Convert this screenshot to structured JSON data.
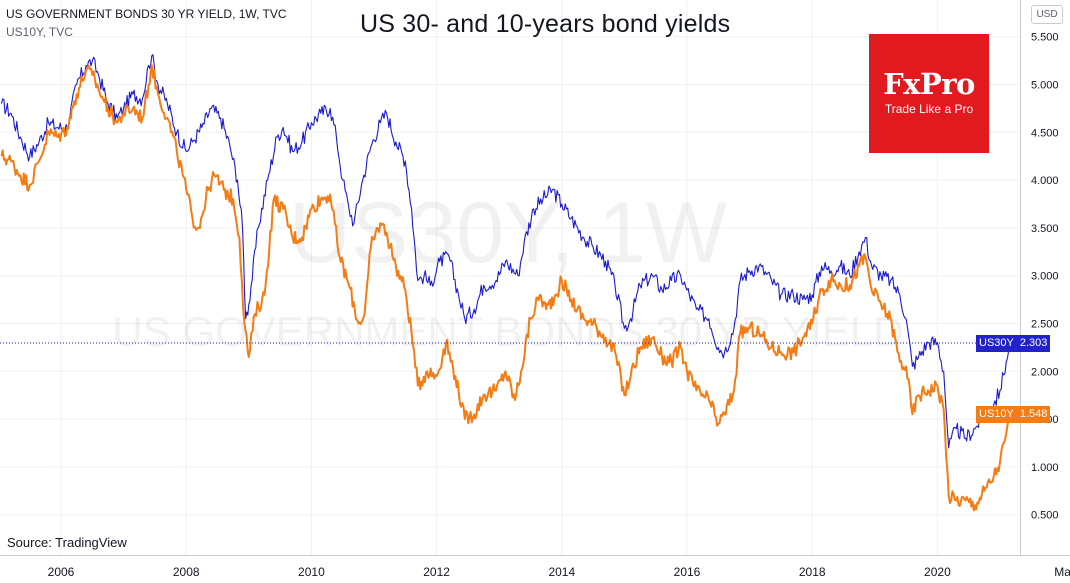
{
  "header": {
    "main": "US GOVERNMENT BONDS 30 YR YIELD, 1W, TVC",
    "secondary": "US10Y, TVC"
  },
  "title": "US 30- and 10-years bond yields",
  "watermark": {
    "symbol": "US30Y, 1W",
    "name": "US GOVERNMENT BONDS 30 YR YIELD"
  },
  "logo": {
    "name": "FxPro",
    "tagline": "Trade Like a Pro"
  },
  "source": "Source: TradingView",
  "currency": "USD",
  "last_values": [
    {
      "symbol": "US30Y",
      "value": "2.303",
      "color": "#2222cc"
    },
    {
      "symbol": "US10Y",
      "value": "1.548",
      "color": "#f57c14"
    }
  ],
  "colors": {
    "us30y": "#1a1acd",
    "us10y": "#f57c14",
    "grid": "#eef0f3",
    "axis_text": "#131722"
  },
  "chart_data": {
    "type": "line",
    "xlabel": "",
    "ylabel": "",
    "x_ticks": [
      "2006",
      "2008",
      "2010",
      "2012",
      "2014",
      "2016",
      "2018",
      "2020",
      "Ma"
    ],
    "y_ticks": [
      "5.500",
      "5.000",
      "4.500",
      "4.000",
      "3.500",
      "3.000",
      "2.500",
      "2.000",
      "1.500",
      "1.000",
      "0.500"
    ],
    "ylim": [
      0.0,
      5.65
    ],
    "xlim": [
      2005.03,
      2021.25
    ],
    "grid": true,
    "series": [
      {
        "name": "US30Y",
        "color": "#1a1acd",
        "points": [
          [
            2005.05,
            4.8
          ],
          [
            2005.2,
            4.7
          ],
          [
            2005.35,
            4.45
          ],
          [
            2005.5,
            4.25
          ],
          [
            2005.65,
            4.4
          ],
          [
            2005.8,
            4.6
          ],
          [
            2005.95,
            4.55
          ],
          [
            2006.1,
            4.55
          ],
          [
            2006.25,
            5.0
          ],
          [
            2006.4,
            5.2
          ],
          [
            2006.5,
            5.25
          ],
          [
            2006.6,
            5.1
          ],
          [
            2006.75,
            4.8
          ],
          [
            2006.9,
            4.65
          ],
          [
            2007.0,
            4.75
          ],
          [
            2007.15,
            4.9
          ],
          [
            2007.3,
            4.85
          ],
          [
            2007.4,
            5.2
          ],
          [
            2007.45,
            5.3
          ],
          [
            2007.55,
            5.0
          ],
          [
            2007.7,
            4.8
          ],
          [
            2007.85,
            4.5
          ],
          [
            2008.0,
            4.3
          ],
          [
            2008.1,
            4.4
          ],
          [
            2008.25,
            4.55
          ],
          [
            2008.4,
            4.75
          ],
          [
            2008.55,
            4.65
          ],
          [
            2008.7,
            4.35
          ],
          [
            2008.82,
            4.0
          ],
          [
            2008.9,
            3.5
          ],
          [
            2008.95,
            2.55
          ],
          [
            2009.0,
            2.7
          ],
          [
            2009.15,
            3.5
          ],
          [
            2009.3,
            4.0
          ],
          [
            2009.45,
            4.45
          ],
          [
            2009.55,
            4.55
          ],
          [
            2009.7,
            4.3
          ],
          [
            2009.85,
            4.4
          ],
          [
            2010.0,
            4.6
          ],
          [
            2010.15,
            4.7
          ],
          [
            2010.3,
            4.75
          ],
          [
            2010.4,
            4.45
          ],
          [
            2010.5,
            4.0
          ],
          [
            2010.6,
            3.7
          ],
          [
            2010.68,
            3.55
          ],
          [
            2010.8,
            3.95
          ],
          [
            2010.95,
            4.35
          ],
          [
            2011.1,
            4.6
          ],
          [
            2011.2,
            4.7
          ],
          [
            2011.35,
            4.4
          ],
          [
            2011.5,
            4.2
          ],
          [
            2011.6,
            3.7
          ],
          [
            2011.7,
            2.95
          ],
          [
            2011.8,
            3.0
          ],
          [
            2011.9,
            2.9
          ],
          [
            2012.05,
            3.15
          ],
          [
            2012.2,
            3.2
          ],
          [
            2012.35,
            2.8
          ],
          [
            2012.45,
            2.55
          ],
          [
            2012.6,
            2.65
          ],
          [
            2012.75,
            2.9
          ],
          [
            2012.95,
            2.95
          ],
          [
            2013.1,
            3.15
          ],
          [
            2013.3,
            3.0
          ],
          [
            2013.4,
            3.35
          ],
          [
            2013.55,
            3.7
          ],
          [
            2013.7,
            3.8
          ],
          [
            2013.85,
            3.9
          ],
          [
            2014.0,
            3.75
          ],
          [
            2014.15,
            3.6
          ],
          [
            2014.35,
            3.4
          ],
          [
            2014.5,
            3.3
          ],
          [
            2014.7,
            3.15
          ],
          [
            2014.85,
            2.9
          ],
          [
            2015.0,
            2.45
          ],
          [
            2015.1,
            2.55
          ],
          [
            2015.25,
            2.9
          ],
          [
            2015.45,
            3.0
          ],
          [
            2015.6,
            2.85
          ],
          [
            2015.75,
            2.95
          ],
          [
            2015.9,
            3.0
          ],
          [
            2016.0,
            2.85
          ],
          [
            2016.15,
            2.65
          ],
          [
            2016.35,
            2.55
          ],
          [
            2016.5,
            2.25
          ],
          [
            2016.6,
            2.2
          ],
          [
            2016.75,
            2.45
          ],
          [
            2016.85,
            2.95
          ],
          [
            2017.0,
            3.05
          ],
          [
            2017.15,
            3.1
          ],
          [
            2017.35,
            2.95
          ],
          [
            2017.5,
            2.8
          ],
          [
            2017.7,
            2.8
          ],
          [
            2017.85,
            2.75
          ],
          [
            2018.0,
            2.8
          ],
          [
            2018.15,
            3.1
          ],
          [
            2018.3,
            3.05
          ],
          [
            2018.45,
            3.1
          ],
          [
            2018.6,
            3.0
          ],
          [
            2018.75,
            3.25
          ],
          [
            2018.85,
            3.4
          ],
          [
            2018.95,
            3.1
          ],
          [
            2019.1,
            3.0
          ],
          [
            2019.25,
            2.95
          ],
          [
            2019.4,
            2.8
          ],
          [
            2019.5,
            2.55
          ],
          [
            2019.6,
            2.05
          ],
          [
            2019.7,
            2.15
          ],
          [
            2019.85,
            2.3
          ],
          [
            2020.0,
            2.3
          ],
          [
            2020.1,
            2.0
          ],
          [
            2020.18,
            1.2
          ],
          [
            2020.3,
            1.4
          ],
          [
            2020.45,
            1.3
          ],
          [
            2020.6,
            1.4
          ],
          [
            2020.75,
            1.55
          ],
          [
            2020.9,
            1.65
          ],
          [
            2021.0,
            1.8
          ],
          [
            2021.1,
            2.1
          ],
          [
            2021.18,
            2.303
          ]
        ]
      },
      {
        "name": "US10Y",
        "color": "#f57c14",
        "points": [
          [
            2005.05,
            4.25
          ],
          [
            2005.2,
            4.2
          ],
          [
            2005.35,
            4.05
          ],
          [
            2005.5,
            3.95
          ],
          [
            2005.65,
            4.2
          ],
          [
            2005.8,
            4.5
          ],
          [
            2005.95,
            4.45
          ],
          [
            2006.1,
            4.55
          ],
          [
            2006.25,
            4.9
          ],
          [
            2006.4,
            5.15
          ],
          [
            2006.5,
            5.1
          ],
          [
            2006.6,
            4.95
          ],
          [
            2006.75,
            4.75
          ],
          [
            2006.9,
            4.6
          ],
          [
            2007.0,
            4.7
          ],
          [
            2007.15,
            4.75
          ],
          [
            2007.3,
            4.65
          ],
          [
            2007.4,
            5.0
          ],
          [
            2007.45,
            5.2
          ],
          [
            2007.55,
            4.9
          ],
          [
            2007.7,
            4.65
          ],
          [
            2007.85,
            4.3
          ],
          [
            2008.0,
            3.9
          ],
          [
            2008.1,
            3.6
          ],
          [
            2008.2,
            3.5
          ],
          [
            2008.35,
            3.9
          ],
          [
            2008.45,
            4.05
          ],
          [
            2008.6,
            3.9
          ],
          [
            2008.75,
            3.8
          ],
          [
            2008.85,
            3.4
          ],
          [
            2008.93,
            2.5
          ],
          [
            2009.0,
            2.15
          ],
          [
            2009.1,
            2.6
          ],
          [
            2009.25,
            2.8
          ],
          [
            2009.4,
            3.8
          ],
          [
            2009.55,
            3.7
          ],
          [
            2009.7,
            3.4
          ],
          [
            2009.85,
            3.4
          ],
          [
            2010.0,
            3.7
          ],
          [
            2010.15,
            3.8
          ],
          [
            2010.3,
            3.85
          ],
          [
            2010.45,
            3.2
          ],
          [
            2010.6,
            2.9
          ],
          [
            2010.75,
            2.5
          ],
          [
            2010.85,
            2.6
          ],
          [
            2010.95,
            3.3
          ],
          [
            2011.1,
            3.55
          ],
          [
            2011.2,
            3.45
          ],
          [
            2011.35,
            3.1
          ],
          [
            2011.5,
            2.85
          ],
          [
            2011.6,
            2.4
          ],
          [
            2011.7,
            1.85
          ],
          [
            2011.85,
            2.0
          ],
          [
            2012.0,
            1.95
          ],
          [
            2012.15,
            2.3
          ],
          [
            2012.3,
            1.95
          ],
          [
            2012.45,
            1.5
          ],
          [
            2012.6,
            1.55
          ],
          [
            2012.75,
            1.75
          ],
          [
            2012.95,
            1.8
          ],
          [
            2013.1,
            2.0
          ],
          [
            2013.25,
            1.7
          ],
          [
            2013.35,
            2.0
          ],
          [
            2013.5,
            2.55
          ],
          [
            2013.65,
            2.8
          ],
          [
            2013.75,
            2.65
          ],
          [
            2013.9,
            2.8
          ],
          [
            2014.0,
            2.95
          ],
          [
            2014.15,
            2.75
          ],
          [
            2014.35,
            2.55
          ],
          [
            2014.5,
            2.5
          ],
          [
            2014.7,
            2.35
          ],
          [
            2014.85,
            2.2
          ],
          [
            2015.0,
            1.75
          ],
          [
            2015.1,
            1.95
          ],
          [
            2015.25,
            2.25
          ],
          [
            2015.45,
            2.35
          ],
          [
            2015.6,
            2.15
          ],
          [
            2015.75,
            2.1
          ],
          [
            2015.9,
            2.25
          ],
          [
            2016.0,
            2.0
          ],
          [
            2016.15,
            1.8
          ],
          [
            2016.35,
            1.7
          ],
          [
            2016.5,
            1.45
          ],
          [
            2016.6,
            1.55
          ],
          [
            2016.75,
            1.8
          ],
          [
            2016.85,
            2.4
          ],
          [
            2017.0,
            2.45
          ],
          [
            2017.15,
            2.4
          ],
          [
            2017.35,
            2.25
          ],
          [
            2017.5,
            2.2
          ],
          [
            2017.7,
            2.2
          ],
          [
            2017.85,
            2.35
          ],
          [
            2018.0,
            2.5
          ],
          [
            2018.15,
            2.85
          ],
          [
            2018.3,
            2.95
          ],
          [
            2018.45,
            2.9
          ],
          [
            2018.6,
            2.9
          ],
          [
            2018.75,
            3.1
          ],
          [
            2018.85,
            3.2
          ],
          [
            2018.95,
            2.85
          ],
          [
            2019.1,
            2.7
          ],
          [
            2019.25,
            2.55
          ],
          [
            2019.4,
            2.1
          ],
          [
            2019.5,
            2.05
          ],
          [
            2019.6,
            1.55
          ],
          [
            2019.7,
            1.75
          ],
          [
            2019.85,
            1.8
          ],
          [
            2020.0,
            1.85
          ],
          [
            2020.1,
            1.6
          ],
          [
            2020.18,
            0.7
          ],
          [
            2020.3,
            0.65
          ],
          [
            2020.45,
            0.65
          ],
          [
            2020.6,
            0.6
          ],
          [
            2020.75,
            0.75
          ],
          [
            2020.9,
            0.9
          ],
          [
            2021.0,
            1.05
          ],
          [
            2021.1,
            1.35
          ],
          [
            2021.18,
            1.548
          ]
        ]
      }
    ]
  }
}
